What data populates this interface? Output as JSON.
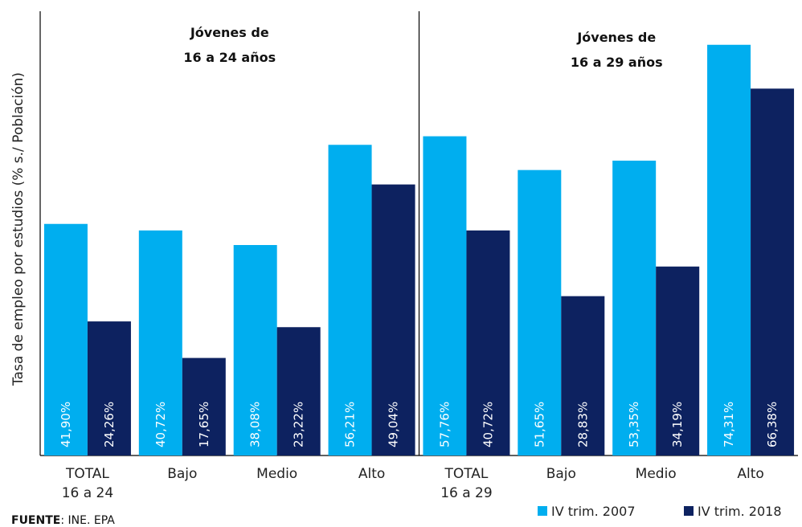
{
  "chart_data": {
    "type": "bar",
    "title": "",
    "ylabel": "Tasa de empleo por estudios (% s./ Población)",
    "xlabel": "",
    "ylim": [
      0,
      76.6
    ],
    "grid": false,
    "legend_position": "bottom-right",
    "group_titles": [
      {
        "line1": "Jóvenes de",
        "line2": "16 a 24 años"
      },
      {
        "line1": "Jóvenes de",
        "line2": "16 a 29 años"
      }
    ],
    "categories": [
      [
        "TOTAL",
        "16 a 24"
      ],
      [
        "Bajo"
      ],
      [
        "Medio"
      ],
      [
        "Alto"
      ],
      [
        "TOTAL",
        "16 a 29"
      ],
      [
        "Bajo"
      ],
      [
        "Medio"
      ],
      [
        "Alto"
      ]
    ],
    "series": [
      {
        "name": "IV trim. 2007",
        "color": "#00AEEF",
        "values": [
          41.9,
          40.72,
          38.08,
          56.21,
          57.76,
          51.65,
          53.35,
          74.31
        ],
        "labels": [
          "41,90%",
          "40,72%",
          "38,08%",
          "56,21%",
          "57,76%",
          "51,65%",
          "53,35%",
          "74,31%"
        ]
      },
      {
        "name": "IV trim. 2018",
        "color": "#0D2260",
        "values": [
          24.26,
          17.65,
          23.22,
          49.04,
          40.72,
          28.83,
          34.19,
          66.38
        ],
        "labels": [
          "24,26%",
          "17,65%",
          "23,22%",
          "49,04%",
          "40,72%",
          "28,83%",
          "34,19%",
          "66,38%"
        ]
      }
    ]
  },
  "source": {
    "label": "FUENTE",
    "text": ": INE. EPA"
  }
}
